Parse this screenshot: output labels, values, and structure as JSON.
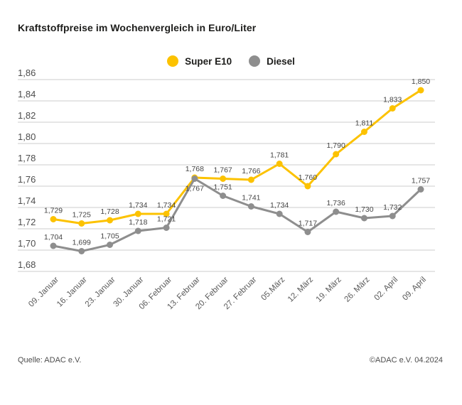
{
  "page": {
    "title": "Kraftstoffpreise im Wochenvergleich in Euro/Liter",
    "footer_left": "Quelle: ADAC e.V.",
    "footer_right": "©ADAC e.V. 04.2024"
  },
  "chart_data": {
    "type": "line",
    "title": "Kraftstoffpreise im Wochenvergleich in Euro/Liter",
    "unit": "Euro/Liter",
    "categories": [
      "09. Januar",
      "16. Januar",
      "23. Januar",
      "30. Januar",
      "06. Februar",
      "13. Februar",
      "20. Februar",
      "27. Februar",
      "05.März",
      "12. März",
      "19. März",
      "26. März",
      "02. April",
      "09. April"
    ],
    "series": [
      {
        "name": "Super E10",
        "color": "#FCC200",
        "values": [
          1.729,
          1.725,
          1.728,
          1.734,
          1.734,
          1.768,
          1.767,
          1.766,
          1.781,
          1.76,
          1.79,
          1.811,
          1.833,
          1.85
        ],
        "point_labels": [
          "1,729",
          "1,725",
          "1,728",
          "1,734",
          "1,734",
          "1,768",
          "1,767",
          "1,766",
          "1,781",
          "1,760",
          "1,790",
          "1,811",
          "1,833",
          "1,850"
        ]
      },
      {
        "name": "Diesel",
        "color": "#8E8E8E",
        "values": [
          1.704,
          1.699,
          1.705,
          1.718,
          1.721,
          1.767,
          1.751,
          1.741,
          1.734,
          1.717,
          1.736,
          1.73,
          1.732,
          1.757
        ],
        "point_labels": [
          "1,704",
          "1,699",
          "1,705",
          "1,718",
          "1,721",
          "1,767",
          "1,751",
          "1,741",
          "1,734",
          "1,717",
          "1,736",
          "1,730",
          "1,732",
          "1,757"
        ]
      }
    ],
    "yticks": [
      "1,86",
      "1,84",
      "1,82",
      "1,80",
      "1,78",
      "1,76",
      "1,74",
      "1,72",
      "1,70",
      "1,68"
    ],
    "ylim": [
      1.68,
      1.86
    ],
    "ytick_step": 0.02,
    "grid": true,
    "legend_position": "top-center",
    "decimal_separator": ","
  }
}
